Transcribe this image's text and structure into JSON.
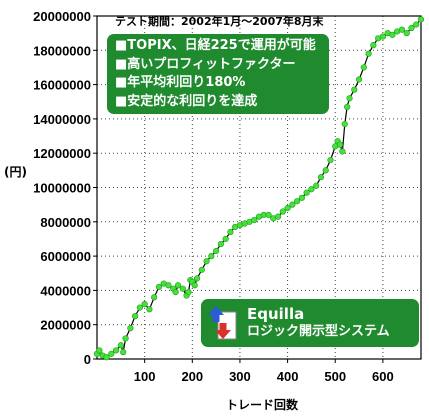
{
  "period_label": "テスト期間：2002年1月～2007年8月末",
  "features": [
    "■TOPIX、日経225で運用が可能",
    "■高いプロフィットファクター",
    "■年平均利回り180%",
    "■安定的な利回りを達成"
  ],
  "badge": {
    "name": "Equilla",
    "subtitle": "ロジック開示型システム"
  },
  "colors": {
    "line": "#000000",
    "marker": "#44e23a",
    "box": "#1f8a2e"
  },
  "chart_data": {
    "type": "line",
    "title": "",
    "xlabel": "トレード回数",
    "ylabel": "(円)",
    "xlim": [
      0,
      680
    ],
    "ylim": [
      0,
      20000000
    ],
    "xticks": [
      100,
      200,
      300,
      400,
      500,
      600
    ],
    "yticks": [
      0,
      2000000,
      4000000,
      6000000,
      8000000,
      10000000,
      12000000,
      14000000,
      16000000,
      18000000,
      20000000
    ],
    "grid": true,
    "series": [
      {
        "x": [
          0,
          5,
          12,
          20,
          30,
          40,
          50,
          55,
          60,
          70,
          80,
          90,
          100,
          110,
          120,
          130,
          140,
          150,
          160,
          165,
          170,
          180,
          188,
          192,
          196,
          200,
          205,
          210,
          220,
          230,
          240,
          250,
          260,
          270,
          280,
          290,
          300,
          310,
          320,
          330,
          340,
          350,
          360,
          370,
          380,
          390,
          400,
          410,
          420,
          430,
          440,
          450,
          460,
          470,
          480,
          490,
          500,
          505,
          510,
          515,
          520,
          525,
          530,
          540,
          550,
          560,
          570,
          580,
          590,
          600,
          610,
          620,
          630,
          640,
          650,
          660,
          670,
          680
        ],
        "y": [
          300000,
          500000,
          200000,
          100000,
          300000,
          500000,
          800000,
          400000,
          1200000,
          1800000,
          2500000,
          3000000,
          3200000,
          2900000,
          3600000,
          4200000,
          4400000,
          4300000,
          4100000,
          3900000,
          4300000,
          4100000,
          3700000,
          3900000,
          4600000,
          4500000,
          4300000,
          4700000,
          5200000,
          5700000,
          6000000,
          6300000,
          6700000,
          7000000,
          7400000,
          7700000,
          7800000,
          7900000,
          8000000,
          8100000,
          8300000,
          8400000,
          8400000,
          8200000,
          8300000,
          8600000,
          8800000,
          9000000,
          9200000,
          9400000,
          9700000,
          9900000,
          10100000,
          10600000,
          11000000,
          11600000,
          12400000,
          12700000,
          12500000,
          12100000,
          13700000,
          14700000,
          15200000,
          15700000,
          16300000,
          17000000,
          17800000,
          18300000,
          18700000,
          18800000,
          19000000,
          18900000,
          19100000,
          19200000,
          19000000,
          19300000,
          19500000,
          19800000
        ]
      }
    ]
  }
}
